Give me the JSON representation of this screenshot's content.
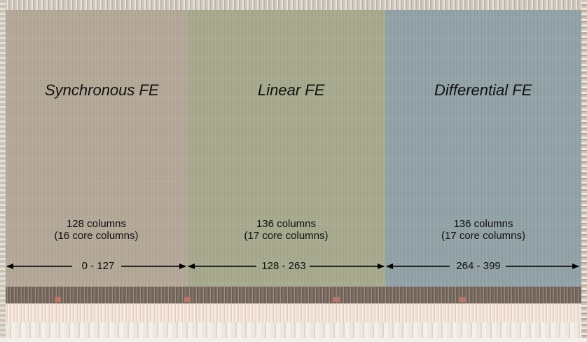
{
  "regions": [
    {
      "title": "Synchronous FE",
      "columns": "128 columns",
      "core_columns": "(16 core columns)",
      "range": "0 - 127"
    },
    {
      "title": "Linear FE",
      "columns": "136 columns",
      "core_columns": "(17 core columns)",
      "range": "128 - 263"
    },
    {
      "title": "Differential FE",
      "columns": "136 columns",
      "core_columns": "(17 core columns)",
      "range": "264 - 399"
    }
  ],
  "colors": {
    "synchronous_fe": "#b7aa99",
    "linear_fe": "#a9ac8e",
    "differential_fe": "#93a4a9",
    "arrow": "#000000",
    "text": "#111111"
  }
}
